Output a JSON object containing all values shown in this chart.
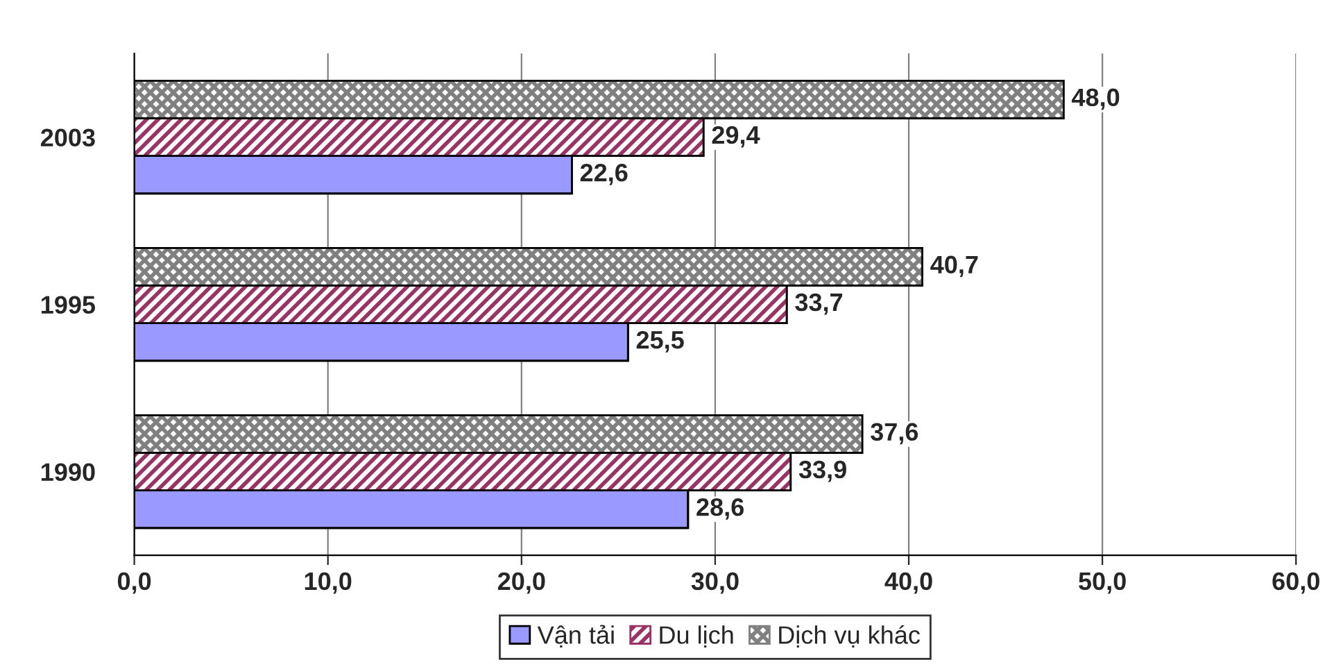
{
  "chart_data": {
    "type": "bar",
    "orientation": "horizontal",
    "categories": [
      "2003",
      "1995",
      "1990"
    ],
    "series": [
      {
        "name": "Vận tải",
        "color": "#9999ff",
        "values": [
          22.6,
          25.5,
          28.6
        ],
        "value_labels": [
          "22,6",
          "25,5",
          "28,6"
        ]
      },
      {
        "name": "Du lịch",
        "color": "#993366",
        "values": [
          29.4,
          33.7,
          33.9
        ],
        "value_labels": [
          "29,4",
          "33,7",
          "33,9"
        ]
      },
      {
        "name": "Dịch vụ khác",
        "color": "#808080",
        "values": [
          48.0,
          40.7,
          37.6
        ],
        "value_labels": [
          "48,0",
          "40,7",
          "37,6"
        ]
      }
    ],
    "xlim": [
      0,
      60
    ],
    "xticks": [
      {
        "value": 0,
        "label": "0,0"
      },
      {
        "value": 10,
        "label": "10,0"
      },
      {
        "value": 20,
        "label": "20,0"
      },
      {
        "value": 30,
        "label": "30,0"
      },
      {
        "value": 40,
        "label": "40,0"
      },
      {
        "value": 50,
        "label": "50,0"
      },
      {
        "value": 60,
        "label": "60,0"
      }
    ],
    "grid": "x",
    "legend": "bottom"
  }
}
